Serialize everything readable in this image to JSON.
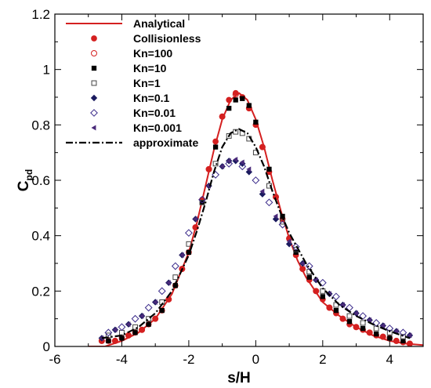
{
  "chart_data": {
    "type": "line",
    "title": "",
    "xlabel": "s/H",
    "ylabel_main": "C",
    "ylabel_sub": "pd",
    "xlim": [
      -6,
      5
    ],
    "ylim": [
      0,
      1.2
    ],
    "xticks": [
      -6,
      -4,
      -2,
      0,
      2,
      4
    ],
    "yticks": [
      0,
      0.2,
      0.4,
      0.6,
      0.8,
      1,
      1.2
    ],
    "xtick_labels": [
      "-6",
      "-4",
      "-2",
      "0",
      "2",
      "4"
    ],
    "ytick_labels": [
      "0",
      "0.2",
      "0.4",
      "0.6",
      "0.8",
      "1",
      "1.2"
    ],
    "grid": false,
    "legend_position": "top-left",
    "series": [
      {
        "name": "Analytical",
        "style": "line",
        "color": "#d42020",
        "x": [
          -5.0,
          -4.5,
          -4.0,
          -3.5,
          -3.0,
          -2.5,
          -2.0,
          -1.75,
          -1.5,
          -1.25,
          -1.0,
          -0.75,
          -0.5,
          -0.25,
          0.0,
          0.25,
          0.5,
          0.75,
          1.0,
          1.25,
          1.5,
          2.0,
          2.5,
          3.0,
          3.5,
          4.0,
          4.5,
          5.0
        ],
        "y": [
          0.0,
          0.0,
          0.02,
          0.05,
          0.1,
          0.19,
          0.34,
          0.45,
          0.58,
          0.71,
          0.82,
          0.89,
          0.915,
          0.89,
          0.82,
          0.72,
          0.6,
          0.49,
          0.39,
          0.31,
          0.25,
          0.16,
          0.11,
          0.07,
          0.04,
          0.02,
          0.01,
          0.005
        ]
      },
      {
        "name": "Collisionless",
        "style": "marker",
        "marker": "filled-circle",
        "color": "#d42020",
        "x": [
          -4.6,
          -4.4,
          -4.2,
          -4.0,
          -3.8,
          -3.6,
          -3.4,
          -3.2,
          -3.0,
          -2.8,
          -2.6,
          -2.4,
          -2.2,
          -2.0,
          -1.8,
          -1.6,
          -1.4,
          -1.2,
          -1.0,
          -0.8,
          -0.6,
          -0.4,
          -0.2,
          0.0,
          0.2,
          0.4,
          0.6,
          0.8,
          1.0,
          1.2,
          1.4,
          1.6,
          1.8,
          2.0,
          2.2,
          2.4,
          2.6,
          2.8,
          3.0,
          3.2,
          3.4,
          3.6,
          3.8,
          4.0,
          4.2,
          4.4,
          4.6
        ],
        "y": [
          0.02,
          0.02,
          0.02,
          0.03,
          0.04,
          0.05,
          0.06,
          0.08,
          0.1,
          0.13,
          0.17,
          0.22,
          0.28,
          0.34,
          0.43,
          0.53,
          0.64,
          0.74,
          0.83,
          0.89,
          0.915,
          0.9,
          0.86,
          0.8,
          0.72,
          0.63,
          0.54,
          0.46,
          0.39,
          0.33,
          0.28,
          0.24,
          0.2,
          0.17,
          0.14,
          0.12,
          0.1,
          0.08,
          0.07,
          0.06,
          0.05,
          0.04,
          0.035,
          0.03,
          0.02,
          0.015,
          0.01
        ]
      },
      {
        "name": "Kn=100",
        "style": "marker",
        "marker": "open-circle",
        "color": "#d42020",
        "x": [
          -4.6,
          -4.2,
          -3.8,
          -3.4,
          -3.0,
          -2.6,
          -2.2,
          -1.8,
          -1.4,
          -1.0,
          -0.6,
          -0.2,
          0.2,
          0.6,
          1.0,
          1.4,
          1.8,
          2.2,
          2.6,
          3.0,
          3.4,
          3.8,
          4.2,
          4.6
        ],
        "y": [
          0.02,
          0.02,
          0.04,
          0.06,
          0.1,
          0.17,
          0.28,
          0.43,
          0.64,
          0.83,
          0.91,
          0.86,
          0.72,
          0.54,
          0.39,
          0.28,
          0.2,
          0.14,
          0.1,
          0.07,
          0.05,
          0.035,
          0.02,
          0.01
        ]
      },
      {
        "name": "Kn=10",
        "style": "marker",
        "marker": "filled-square",
        "color": "#000000",
        "x": [
          -4.4,
          -4.0,
          -3.6,
          -3.2,
          -2.8,
          -2.4,
          -2.0,
          -1.6,
          -1.2,
          -0.8,
          -0.6,
          -0.4,
          -0.2,
          0.0,
          0.4,
          0.8,
          1.2,
          1.6,
          2.0,
          2.4,
          2.8,
          3.2,
          3.6,
          4.0,
          4.4
        ],
        "y": [
          0.02,
          0.03,
          0.05,
          0.08,
          0.13,
          0.22,
          0.34,
          0.52,
          0.72,
          0.86,
          0.89,
          0.895,
          0.87,
          0.81,
          0.64,
          0.47,
          0.34,
          0.25,
          0.18,
          0.13,
          0.09,
          0.065,
          0.045,
          0.03,
          0.02
        ]
      },
      {
        "name": "Kn=1",
        "style": "marker",
        "marker": "open-square",
        "color": "#444444",
        "x": [
          -4.4,
          -4.0,
          -3.6,
          -3.2,
          -2.8,
          -2.4,
          -2.0,
          -1.6,
          -1.2,
          -0.8,
          -0.6,
          -0.4,
          -0.2,
          0.0,
          0.4,
          0.8,
          1.2,
          1.6,
          2.0,
          2.4,
          2.8,
          3.2,
          3.6,
          4.0,
          4.4
        ],
        "y": [
          0.04,
          0.05,
          0.07,
          0.1,
          0.16,
          0.25,
          0.37,
          0.52,
          0.66,
          0.76,
          0.775,
          0.77,
          0.75,
          0.7,
          0.58,
          0.45,
          0.35,
          0.27,
          0.2,
          0.15,
          0.11,
          0.085,
          0.065,
          0.05,
          0.035
        ]
      },
      {
        "name": "Kn=0.1",
        "style": "marker",
        "marker": "filled-diamond",
        "color": "#1a1a5e",
        "x": [
          -4.6,
          -4.2,
          -3.8,
          -3.4,
          -3.0,
          -2.6,
          -2.2,
          -1.8,
          -1.4,
          -1.0,
          -0.8,
          -0.6,
          -0.4,
          -0.2,
          0.2,
          0.6,
          1.0,
          1.4,
          1.8,
          2.2,
          2.6,
          3.0,
          3.4,
          3.8,
          4.2,
          4.6
        ],
        "y": [
          0.03,
          0.06,
          0.08,
          0.11,
          0.16,
          0.23,
          0.33,
          0.46,
          0.58,
          0.65,
          0.67,
          0.67,
          0.66,
          0.63,
          0.55,
          0.46,
          0.37,
          0.3,
          0.24,
          0.19,
          0.15,
          0.12,
          0.095,
          0.075,
          0.055,
          0.04
        ]
      },
      {
        "name": "Kn=0.01",
        "style": "marker",
        "marker": "open-diamond",
        "color": "#3a2a8a",
        "x": [
          -4.4,
          -4.0,
          -3.6,
          -3.2,
          -2.8,
          -2.4,
          -2.0,
          -1.6,
          -1.2,
          -0.8,
          -0.4,
          0.0,
          0.4,
          0.8,
          1.2,
          1.6,
          2.0,
          2.4,
          2.8,
          3.2,
          3.6,
          4.0,
          4.4
        ],
        "y": [
          0.05,
          0.07,
          0.1,
          0.14,
          0.2,
          0.29,
          0.41,
          0.53,
          0.62,
          0.66,
          0.65,
          0.6,
          0.52,
          0.44,
          0.36,
          0.29,
          0.23,
          0.18,
          0.14,
          0.11,
          0.085,
          0.065,
          0.05
        ]
      },
      {
        "name": "Kn=0.001",
        "style": "marker",
        "marker": "filled-left-triangle",
        "color": "#4a2a7a",
        "x": [
          -4.6,
          -4.2,
          -3.8,
          -3.4,
          -3.0,
          -2.6,
          -2.2,
          -1.8,
          -1.4,
          -1.0,
          -0.8,
          -0.6,
          -0.4,
          -0.2,
          0.2,
          0.6,
          1.0,
          1.4,
          1.8,
          2.2,
          2.6,
          3.0,
          3.4,
          3.8,
          4.2,
          4.6
        ],
        "y": [
          0.03,
          0.06,
          0.08,
          0.11,
          0.16,
          0.23,
          0.33,
          0.46,
          0.58,
          0.65,
          0.67,
          0.675,
          0.665,
          0.64,
          0.56,
          0.47,
          0.38,
          0.3,
          0.24,
          0.19,
          0.15,
          0.12,
          0.095,
          0.075,
          0.055,
          0.04
        ]
      },
      {
        "name": "approximate",
        "style": "dashdot-line",
        "color": "#000000",
        "x": [
          -4.6,
          -4.0,
          -3.5,
          -3.0,
          -2.5,
          -2.0,
          -1.75,
          -1.5,
          -1.25,
          -1.0,
          -0.75,
          -0.5,
          -0.25,
          0.0,
          0.25,
          0.5,
          0.75,
          1.0,
          1.5,
          2.0,
          2.5,
          3.0,
          3.5,
          4.0,
          4.6
        ],
        "y": [
          0.03,
          0.04,
          0.07,
          0.12,
          0.2,
          0.33,
          0.42,
          0.52,
          0.63,
          0.72,
          0.77,
          0.785,
          0.77,
          0.72,
          0.65,
          0.56,
          0.48,
          0.41,
          0.3,
          0.21,
          0.15,
          0.11,
          0.08,
          0.055,
          0.03
        ]
      }
    ]
  }
}
